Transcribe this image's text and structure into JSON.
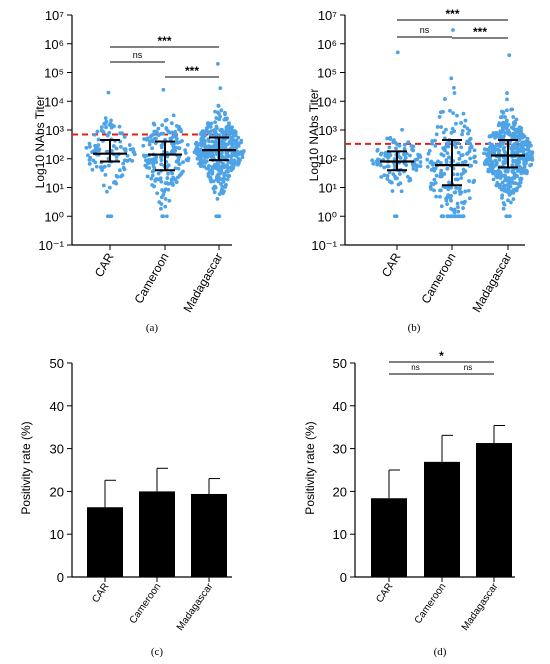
{
  "colors": {
    "points": "#4da3e6",
    "threshold": "#e0201b",
    "bar": "#000000",
    "axis": "#000000"
  },
  "chart_data": [
    {
      "panel": "(a)",
      "type": "scatter",
      "ylabel": "Log10 NAbs Titer",
      "y_scale": "log",
      "ylim": [
        0.1,
        10000000
      ],
      "y_tick_labels": [
        "10⁻¹",
        "10⁰",
        "10¹",
        "10²",
        "10³",
        "10⁴",
        "10⁵",
        "10⁶",
        "10⁷"
      ],
      "categories": [
        "CAR",
        "Cameroon",
        "Madagascar"
      ],
      "median": [
        150,
        140,
        200
      ],
      "iqr_low": [
        80,
        40,
        90
      ],
      "iqr_high": [
        450,
        400,
        550
      ],
      "y_max": [
        20000,
        25000,
        200000
      ],
      "n_points": [
        110,
        180,
        420
      ],
      "threshold": 700,
      "comparisons": [
        {
          "pair": [
            "CAR",
            "Madagascar"
          ],
          "label": "***"
        },
        {
          "pair": [
            "CAR",
            "Cameroon"
          ],
          "label": "ns"
        },
        {
          "pair": [
            "Cameroon",
            "Madagascar"
          ],
          "label": "***"
        }
      ]
    },
    {
      "panel": "(b)",
      "type": "scatter",
      "ylabel": "Log10 NAbs Titer",
      "y_scale": "log",
      "ylim": [
        0.1,
        10000000
      ],
      "y_tick_labels": [
        "10⁻¹",
        "10⁰",
        "10¹",
        "10²",
        "10³",
        "10⁴",
        "10⁵",
        "10⁶",
        "10⁷"
      ],
      "categories": [
        "CAR",
        "Cameroon",
        "Madagascar"
      ],
      "median": [
        80,
        60,
        130
      ],
      "iqr_low": [
        40,
        12,
        50
      ],
      "iqr_high": [
        180,
        450,
        450
      ],
      "y_max": [
        500000,
        3000000,
        400000
      ],
      "n_points": [
        110,
        200,
        420
      ],
      "threshold": 330,
      "comparisons": [
        {
          "pair": [
            "CAR",
            "Madagascar"
          ],
          "label": "***"
        },
        {
          "pair": [
            "CAR",
            "Cameroon"
          ],
          "label": "ns"
        },
        {
          "pair": [
            "Cameroon",
            "Madagascar"
          ],
          "label": "***"
        }
      ]
    },
    {
      "panel": "(c)",
      "type": "bar",
      "ylabel": "Positivity rate (%)",
      "ylim": [
        0,
        50
      ],
      "y_ticks": [
        0,
        10,
        20,
        30,
        40,
        50
      ],
      "categories": [
        "CAR",
        "Cameroon",
        "Madagascar"
      ],
      "values": [
        16.3,
        20.0,
        19.4
      ],
      "errors": [
        6.3,
        5.4,
        3.6
      ],
      "comparisons": []
    },
    {
      "panel": "(d)",
      "type": "bar",
      "ylabel": "Positivity rate (%)",
      "ylim": [
        0,
        50
      ],
      "y_ticks": [
        0,
        10,
        20,
        30,
        40,
        50
      ],
      "categories": [
        "CAR",
        "Cameroon",
        "Madagascar"
      ],
      "values": [
        18.4,
        26.9,
        31.3
      ],
      "errors": [
        6.6,
        6.2,
        4.1
      ],
      "comparisons": [
        {
          "pair": [
            "CAR",
            "Madagascar"
          ],
          "label": "*"
        },
        {
          "pair": [
            "CAR",
            "Cameroon"
          ],
          "label": "ns"
        },
        {
          "pair": [
            "Cameroon",
            "Madagascar"
          ],
          "label": "ns"
        }
      ]
    }
  ]
}
